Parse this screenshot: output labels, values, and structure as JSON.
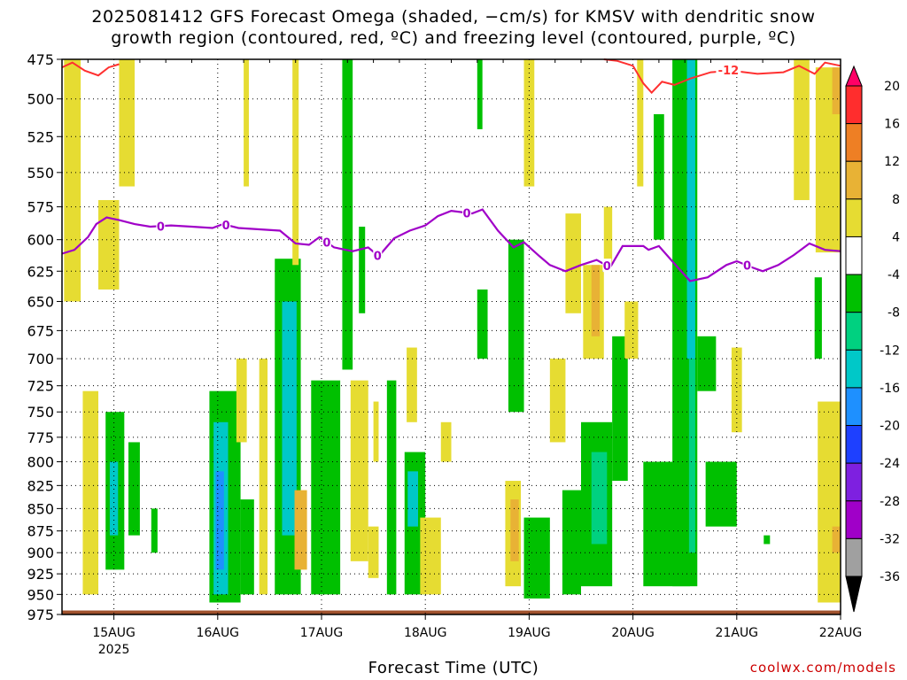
{
  "title_line1": "2025081412 GFS Forecast Omega (shaded, −cm/s) for KMSV with dendritic snow",
  "title_line2": "growth region (contoured, red, ºC) and freezing level (contoured, purple, ºC)",
  "xlabel": "Forecast Time (UTC)",
  "credit": "coolwx.com/models",
  "colors": {
    "freezing_line": "#a000c8",
    "dgz_line": "#ff3030",
    "ground": "#a0522d"
  },
  "chart_data": {
    "type": "heatmap",
    "title": "2025081412 GFS Forecast Omega (shaded, −cm/s) for KMSV with dendritic snow growth region (contoured, red, ºC) and freezing level (contoured, purple, ºC)",
    "xlabel": "Forecast Time (UTC)",
    "ylabel": "",
    "y_levels_hpa": [
      475,
      500,
      525,
      550,
      575,
      600,
      625,
      650,
      675,
      700,
      725,
      750,
      775,
      800,
      825,
      850,
      875,
      900,
      925,
      950,
      975
    ],
    "y_range": [
      475,
      975
    ],
    "y_scale": "log",
    "x_range_days": [
      14.5,
      22.0
    ],
    "x_ticks": [
      {
        "day": 15,
        "label": "15AUG",
        "sub": "2025"
      },
      {
        "day": 16,
        "label": "16AUG",
        "sub": ""
      },
      {
        "day": 17,
        "label": "17AUG",
        "sub": ""
      },
      {
        "day": 18,
        "label": "18AUG",
        "sub": ""
      },
      {
        "day": 19,
        "label": "19AUG",
        "sub": ""
      },
      {
        "day": 20,
        "label": "20AUG",
        "sub": ""
      },
      {
        "day": 21,
        "label": "21AUG",
        "sub": ""
      },
      {
        "day": 22,
        "label": "22AUG",
        "sub": ""
      }
    ],
    "grid": true,
    "colorbar": {
      "labels": [
        20,
        16,
        12,
        8,
        4,
        -4,
        -8,
        -12,
        -16,
        -20,
        -24,
        -28,
        -32,
        -36
      ],
      "colors": [
        "#ff0066",
        "#ff2d2d",
        "#ee7f24",
        "#e8b235",
        "#e6dc32",
        "#ffffff",
        "#00c000",
        "#00d180",
        "#00c8c8",
        "#1e90ff",
        "#1e40ff",
        "#7e20e0",
        "#a000c8",
        "#a0a0a0",
        "#000000"
      ]
    },
    "freezing_level": {
      "label": "0",
      "label_days": [
        15.45,
        16.08,
        17.05,
        17.54,
        18.4,
        19.75,
        21.1
      ],
      "points": [
        [
          14.5,
          611
        ],
        [
          14.62,
          608
        ],
        [
          14.75,
          598
        ],
        [
          14.83,
          588
        ],
        [
          14.93,
          583
        ],
        [
          15.05,
          585
        ],
        [
          15.2,
          588
        ],
        [
          15.35,
          590
        ],
        [
          15.55,
          589
        ],
        [
          15.75,
          590
        ],
        [
          15.95,
          591
        ],
        [
          16.05,
          588
        ],
        [
          16.2,
          591
        ],
        [
          16.4,
          592
        ],
        [
          16.6,
          593
        ],
        [
          16.75,
          603
        ],
        [
          16.88,
          604
        ],
        [
          16.98,
          598
        ],
        [
          17.12,
          606
        ],
        [
          17.3,
          609
        ],
        [
          17.45,
          606
        ],
        [
          17.55,
          613
        ],
        [
          17.7,
          599
        ],
        [
          17.85,
          593
        ],
        [
          18.0,
          589
        ],
        [
          18.12,
          582
        ],
        [
          18.25,
          578
        ],
        [
          18.45,
          580
        ],
        [
          18.55,
          577
        ],
        [
          18.7,
          593
        ],
        [
          18.85,
          606
        ],
        [
          18.95,
          602
        ],
        [
          19.1,
          613
        ],
        [
          19.2,
          620
        ],
        [
          19.35,
          625
        ],
        [
          19.5,
          620
        ],
        [
          19.65,
          616
        ],
        [
          19.78,
          622
        ],
        [
          19.9,
          605
        ],
        [
          20.1,
          605
        ],
        [
          20.15,
          608
        ],
        [
          20.25,
          605
        ],
        [
          20.4,
          619
        ],
        [
          20.55,
          633
        ],
        [
          20.72,
          630
        ],
        [
          20.9,
          620
        ],
        [
          21.0,
          617
        ],
        [
          21.15,
          622
        ],
        [
          21.25,
          625
        ],
        [
          21.4,
          620
        ],
        [
          21.55,
          612
        ],
        [
          21.7,
          603
        ],
        [
          21.85,
          608
        ],
        [
          22.0,
          609
        ]
      ]
    },
    "dgz_contour": {
      "label": "-12",
      "label_day": 20.92,
      "segments": [
        [
          [
            14.5,
            480
          ],
          [
            14.6,
            477
          ],
          [
            14.72,
            482
          ],
          [
            14.85,
            485
          ],
          [
            14.95,
            480
          ],
          [
            15.05,
            478
          ]
        ],
        [
          [
            19.72,
            475
          ],
          [
            19.85,
            476
          ],
          [
            20.0,
            479
          ],
          [
            20.1,
            490
          ],
          [
            20.18,
            496
          ],
          [
            20.28,
            489
          ],
          [
            20.4,
            491
          ],
          [
            20.55,
            487
          ],
          [
            20.75,
            483
          ],
          [
            20.95,
            482
          ],
          [
            21.2,
            484
          ],
          [
            21.45,
            483
          ],
          [
            21.6,
            479
          ],
          [
            21.75,
            484
          ],
          [
            21.85,
            477
          ],
          [
            22.0,
            479
          ]
        ]
      ]
    },
    "omega_regions": [
      {
        "value": 5,
        "x": [
          14.52,
          14.68
        ],
        "p": [
          475,
          650
        ]
      },
      {
        "value": 5,
        "x": [
          14.85,
          15.05
        ],
        "p": [
          570,
          640
        ]
      },
      {
        "value": 5,
        "x": [
          15.05,
          15.2
        ],
        "p": [
          475,
          560
        ]
      },
      {
        "value": 5,
        "x": [
          14.7,
          14.85
        ],
        "p": [
          730,
          950
        ]
      },
      {
        "value": -6,
        "x": [
          14.92,
          15.1
        ],
        "p": [
          750,
          920
        ]
      },
      {
        "value": -14,
        "x": [
          14.96,
          15.04
        ],
        "p": [
          800,
          880
        ]
      },
      {
        "value": -6,
        "x": [
          15.14,
          15.25
        ],
        "p": [
          780,
          880
        ]
      },
      {
        "value": -6,
        "x": [
          15.36,
          15.42
        ],
        "p": [
          850,
          900
        ]
      },
      {
        "value": -6,
        "x": [
          15.92,
          16.22
        ],
        "p": [
          730,
          960
        ]
      },
      {
        "value": -14,
        "x": [
          15.96,
          16.1
        ],
        "p": [
          760,
          950
        ]
      },
      {
        "value": -18,
        "x": [
          15.98,
          16.06
        ],
        "p": [
          810,
          920
        ]
      },
      {
        "value": 5,
        "x": [
          16.18,
          16.28
        ],
        "p": [
          700,
          780
        ]
      },
      {
        "value": -6,
        "x": [
          16.22,
          16.35
        ],
        "p": [
          840,
          950
        ]
      },
      {
        "value": 5,
        "x": [
          16.25,
          16.3
        ],
        "p": [
          475,
          560
        ]
      },
      {
        "value": 5,
        "x": [
          16.4,
          16.48
        ],
        "p": [
          700,
          950
        ]
      },
      {
        "value": -6,
        "x": [
          16.55,
          16.8
        ],
        "p": [
          615,
          950
        ]
      },
      {
        "value": -12,
        "x": [
          16.62,
          16.76
        ],
        "p": [
          650,
          880
        ]
      },
      {
        "value": 10,
        "x": [
          16.74,
          16.86
        ],
        "p": [
          830,
          920
        ]
      },
      {
        "value": 5,
        "x": [
          16.72,
          16.78
        ],
        "p": [
          475,
          620
        ]
      },
      {
        "value": -6,
        "x": [
          16.9,
          17.18
        ],
        "p": [
          720,
          950
        ]
      },
      {
        "value": -6,
        "x": [
          17.2,
          17.3
        ],
        "p": [
          475,
          710
        ]
      },
      {
        "value": -6,
        "x": [
          17.36,
          17.42
        ],
        "p": [
          590,
          660
        ]
      },
      {
        "value": 5,
        "x": [
          17.28,
          17.45
        ],
        "p": [
          720,
          910
        ]
      },
      {
        "value": 5,
        "x": [
          17.45,
          17.55
        ],
        "p": [
          870,
          930
        ]
      },
      {
        "value": -6,
        "x": [
          17.63,
          17.72
        ],
        "p": [
          720,
          950
        ]
      },
      {
        "value": 5,
        "x": [
          17.5,
          17.55
        ],
        "p": [
          740,
          800
        ]
      },
      {
        "value": -6,
        "x": [
          17.8,
          18.0
        ],
        "p": [
          790,
          950
        ]
      },
      {
        "value": -12,
        "x": [
          17.83,
          17.93
        ],
        "p": [
          810,
          870
        ]
      },
      {
        "value": 5,
        "x": [
          17.82,
          17.92
        ],
        "p": [
          690,
          760
        ]
      },
      {
        "value": 5,
        "x": [
          17.95,
          18.15
        ],
        "p": [
          860,
          950
        ]
      },
      {
        "value": 5,
        "x": [
          18.15,
          18.25
        ],
        "p": [
          760,
          800
        ]
      },
      {
        "value": -6,
        "x": [
          18.5,
          18.55
        ],
        "p": [
          475,
          520
        ]
      },
      {
        "value": -6,
        "x": [
          18.5,
          18.6
        ],
        "p": [
          640,
          700
        ]
      },
      {
        "value": -6,
        "x": [
          18.8,
          18.95
        ],
        "p": [
          600,
          750
        ]
      },
      {
        "value": 5,
        "x": [
          18.95,
          19.05
        ],
        "p": [
          475,
          560
        ]
      },
      {
        "value": 5,
        "x": [
          18.77,
          18.92
        ],
        "p": [
          820,
          940
        ]
      },
      {
        "value": 10,
        "x": [
          18.82,
          18.9
        ],
        "p": [
          840,
          910
        ]
      },
      {
        "value": -6,
        "x": [
          18.95,
          19.2
        ],
        "p": [
          860,
          955
        ]
      },
      {
        "value": 5,
        "x": [
          19.2,
          19.35
        ],
        "p": [
          700,
          780
        ]
      },
      {
        "value": 5,
        "x": [
          19.35,
          19.5
        ],
        "p": [
          580,
          660
        ]
      },
      {
        "value": -6,
        "x": [
          19.32,
          19.5
        ],
        "p": [
          830,
          950
        ]
      },
      {
        "value": 5,
        "x": [
          19.52,
          19.72
        ],
        "p": [
          620,
          700
        ]
      },
      {
        "value": 10,
        "x": [
          19.6,
          19.68
        ],
        "p": [
          620,
          680
        ]
      },
      {
        "value": -6,
        "x": [
          19.5,
          19.8
        ],
        "p": [
          760,
          940
        ]
      },
      {
        "value": -10,
        "x": [
          19.6,
          19.75
        ],
        "p": [
          790,
          890
        ]
      },
      {
        "value": -6,
        "x": [
          19.8,
          19.95
        ],
        "p": [
          680,
          820
        ]
      },
      {
        "value": 5,
        "x": [
          19.72,
          19.8
        ],
        "p": [
          575,
          620
        ]
      },
      {
        "value": 5,
        "x": [
          19.92,
          20.05
        ],
        "p": [
          650,
          700
        ]
      },
      {
        "value": 5,
        "x": [
          20.04,
          20.1
        ],
        "p": [
          475,
          560
        ]
      },
      {
        "value": -6,
        "x": [
          20.1,
          20.55
        ],
        "p": [
          800,
          940
        ]
      },
      {
        "value": -6,
        "x": [
          20.2,
          20.3
        ],
        "p": [
          510,
          600
        ]
      },
      {
        "value": -6,
        "x": [
          20.38,
          20.62
        ],
        "p": [
          475,
          940
        ]
      },
      {
        "value": -14,
        "x": [
          20.52,
          20.6
        ],
        "p": [
          475,
          700
        ]
      },
      {
        "value": -10,
        "x": [
          20.54,
          20.6
        ],
        "p": [
          700,
          900
        ]
      },
      {
        "value": -6,
        "x": [
          20.62,
          20.8
        ],
        "p": [
          680,
          730
        ]
      },
      {
        "value": -6,
        "x": [
          20.7,
          21.0
        ],
        "p": [
          800,
          870
        ]
      },
      {
        "value": -6,
        "x": [
          21.26,
          21.32
        ],
        "p": [
          880,
          890
        ]
      },
      {
        "value": 5,
        "x": [
          20.95,
          21.05
        ],
        "p": [
          690,
          770
        ]
      },
      {
        "value": 5,
        "x": [
          21.55,
          21.7
        ],
        "p": [
          475,
          570
        ]
      },
      {
        "value": 5,
        "x": [
          21.76,
          22.0
        ],
        "p": [
          480,
          610
        ]
      },
      {
        "value": 10,
        "x": [
          21.92,
          22.0
        ],
        "p": [
          480,
          510
        ]
      },
      {
        "value": 5,
        "x": [
          21.78,
          22.0
        ],
        "p": [
          740,
          960
        ]
      },
      {
        "value": 10,
        "x": [
          21.92,
          22.0
        ],
        "p": [
          870,
          900
        ]
      },
      {
        "value": -6,
        "x": [
          21.75,
          21.82
        ],
        "p": [
          630,
          700
        ]
      }
    ]
  }
}
